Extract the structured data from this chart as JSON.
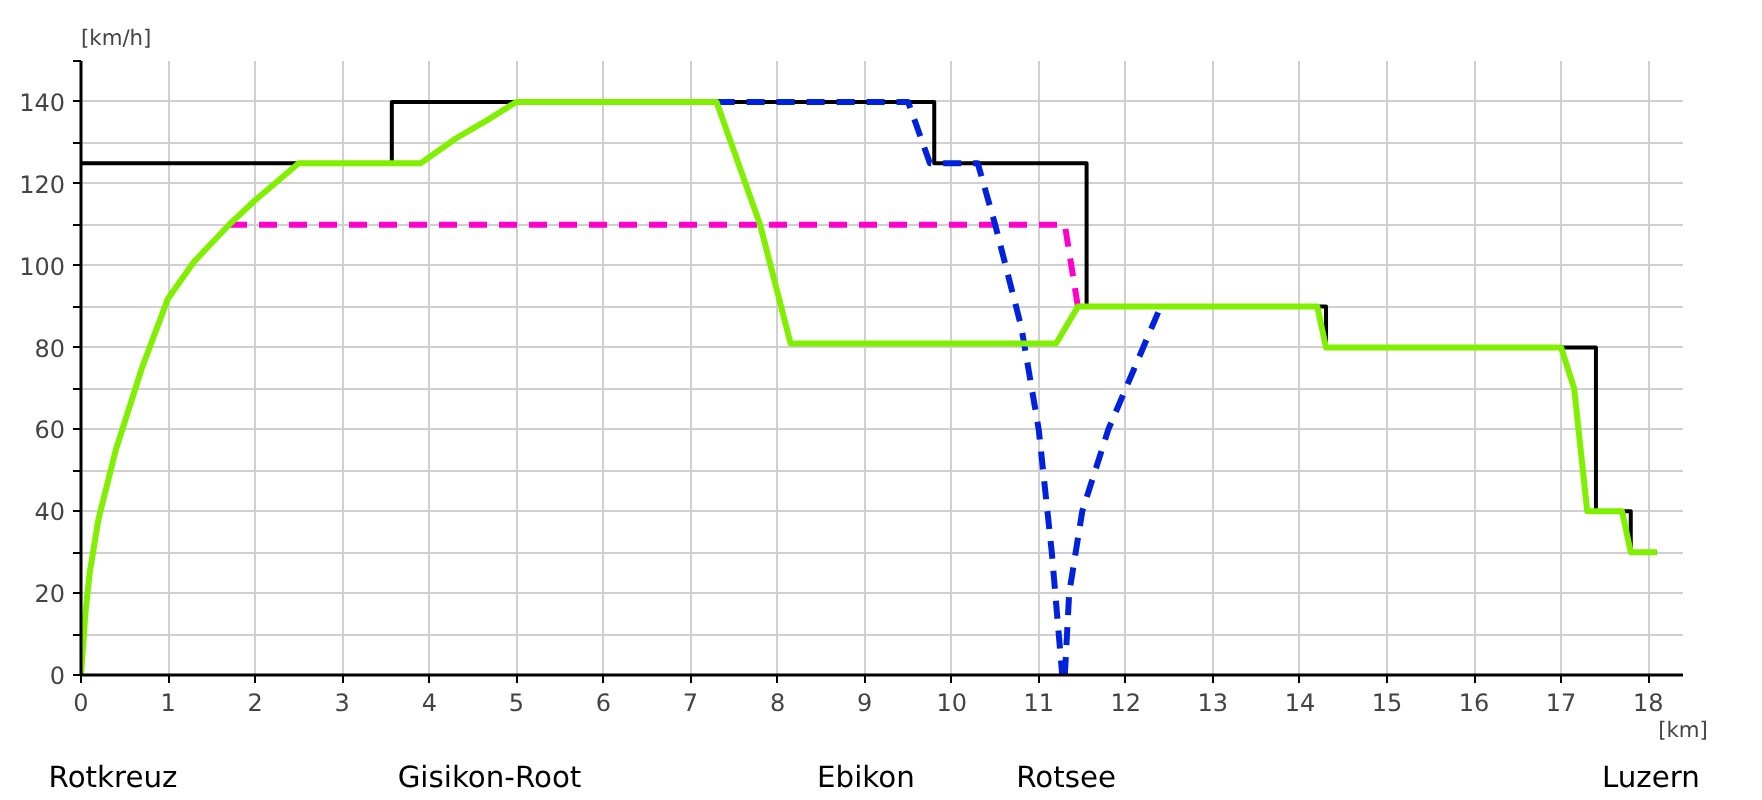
{
  "chart_data": {
    "type": "line",
    "xlabel": "[km]",
    "ylabel": "[km/h]",
    "xlim": [
      0,
      18.4
    ],
    "ylim": [
      0,
      150
    ],
    "xticks": [
      0,
      1,
      2,
      3,
      4,
      5,
      6,
      7,
      8,
      9,
      10,
      11,
      12,
      13,
      14,
      15,
      16,
      17,
      18
    ],
    "yticks": [
      0,
      {
        "value": 10,
        "label": null
      },
      20,
      {
        "value": 30,
        "label": null
      },
      40,
      {
        "value": 50,
        "label": null
      },
      60,
      {
        "value": 70,
        "label": null
      },
      80,
      {
        "value": 90,
        "label": null
      },
      100,
      {
        "value": 110,
        "label": null
      },
      120,
      {
        "value": 130,
        "label": null
      },
      140,
      {
        "value": 150,
        "label": null
      }
    ],
    "grid": true,
    "series": [
      {
        "color": "#000000",
        "line_style": "solid",
        "x": [
          0,
          3.57,
          3.57,
          9.8,
          9.8,
          11.55,
          11.55,
          14.3,
          14.3,
          17.4,
          17.4,
          17.8,
          17.8,
          18.1
        ],
        "values": [
          125,
          125,
          140,
          140,
          125,
          125,
          90,
          90,
          80,
          80,
          40,
          40,
          30,
          30
        ]
      },
      {
        "color": "#ff00cc",
        "line_style": "dashed",
        "x": [
          1.7,
          11.3,
          11.45
        ],
        "values": [
          110,
          110,
          90
        ]
      },
      {
        "color": "#0022dd",
        "line_style": "dashed",
        "x": [
          7.3,
          9.5,
          9.75,
          10.3,
          10.5,
          10.8,
          11.0,
          11.15,
          11.27
        ],
        "values": [
          140,
          140,
          125,
          125,
          110,
          85,
          60,
          30,
          0
        ]
      },
      {
        "color": "#0022dd",
        "line_style": "dashed",
        "x": [
          11.3,
          11.35,
          11.5,
          11.8,
          12.1,
          12.4
        ],
        "values": [
          0,
          20,
          40,
          60,
          75,
          90
        ]
      },
      {
        "color": "#80f000",
        "line_style": "solid",
        "x": [
          0,
          0.05,
          0.1,
          0.2,
          0.4,
          0.7,
          1,
          1.3,
          1.7,
          2,
          2.5,
          3.9,
          4.3,
          4.7,
          5,
          7.3,
          7.8,
          8.15,
          11.2,
          11.45,
          14.2,
          14.3,
          17,
          17.15,
          17.3,
          17.7,
          17.8,
          18.1
        ],
        "values": [
          0,
          15,
          25,
          38,
          55,
          75,
          92,
          101,
          110,
          116,
          125,
          125,
          131,
          136,
          140,
          140,
          110,
          81,
          81,
          90,
          90,
          80,
          80,
          70,
          40,
          40,
          30,
          30
        ]
      }
    ],
    "annotations": [
      "Rotkreuz",
      "Gisikon-Root",
      "Ebikon",
      "Rotsee",
      "Luzern"
    ]
  }
}
